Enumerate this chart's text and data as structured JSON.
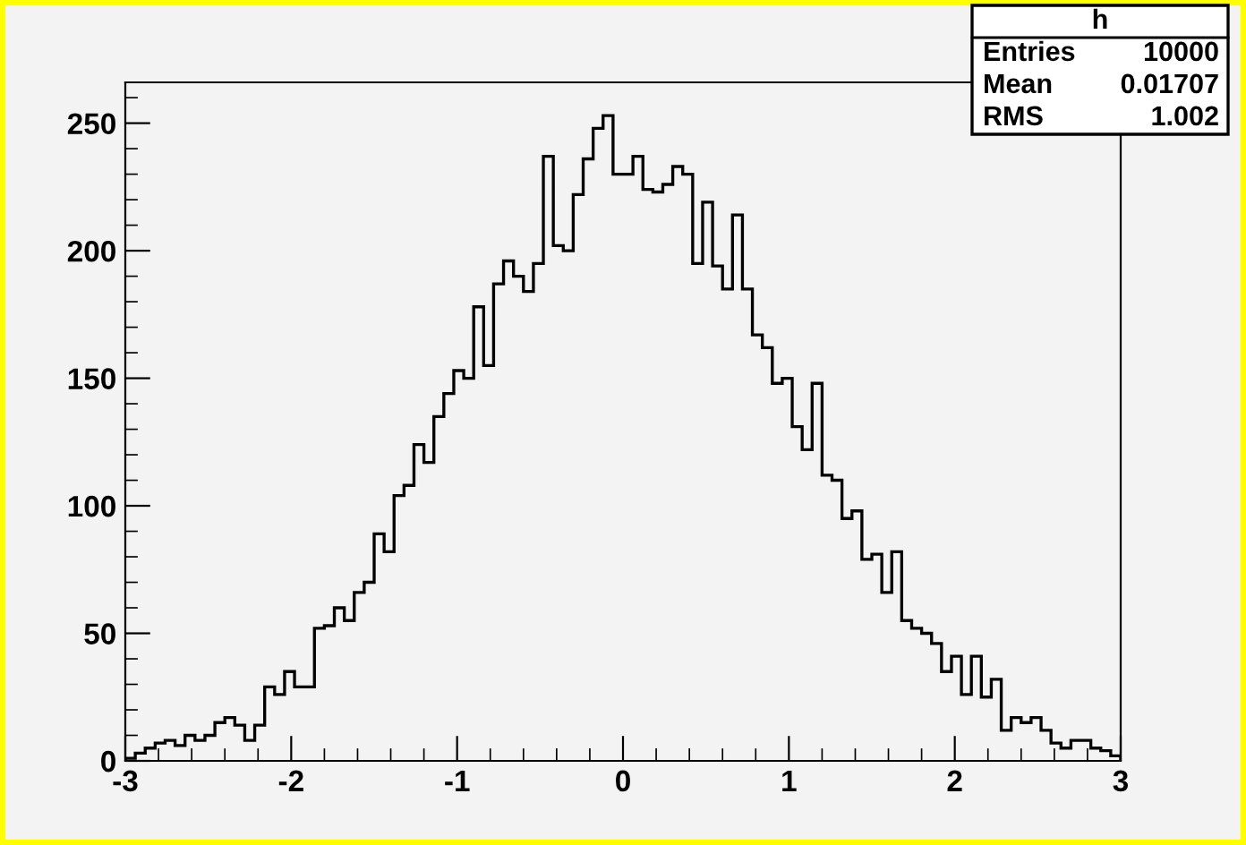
{
  "chart_data": {
    "type": "histogram",
    "bins": [
      -3,
      -2.94,
      -2.88,
      -2.82,
      -2.76,
      -2.7,
      -2.64,
      -2.58,
      -2.52,
      -2.46,
      -2.4,
      -2.34,
      -2.28,
      -2.22,
      -2.16,
      -2.1,
      -2.04,
      -1.98,
      -1.92,
      -1.86,
      -1.8,
      -1.74,
      -1.68,
      -1.62,
      -1.56,
      -1.5,
      -1.44,
      -1.38,
      -1.32,
      -1.26,
      -1.2,
      -1.14,
      -1.08,
      -1.02,
      -0.96,
      -0.9,
      -0.84,
      -0.78,
      -0.72,
      -0.66,
      -0.6,
      -0.54,
      -0.48,
      -0.42,
      -0.36,
      -0.3,
      -0.24,
      -0.18,
      -0.12,
      -0.06,
      0,
      0.06,
      0.12,
      0.18,
      0.24,
      0.3,
      0.36,
      0.42,
      0.48,
      0.54,
      0.6,
      0.66,
      0.72,
      0.78,
      0.84,
      0.9,
      0.96,
      1.02,
      1.08,
      1.14,
      1.2,
      1.26,
      1.32,
      1.38,
      1.44,
      1.5,
      1.56,
      1.62,
      1.68,
      1.74,
      1.8,
      1.86,
      1.92,
      1.98,
      2.04,
      2.1,
      2.16,
      2.22,
      2.28,
      2.34,
      2.4,
      2.46,
      2.52,
      2.58,
      2.64,
      2.7,
      2.76,
      2.82,
      2.88,
      2.94,
      3
    ],
    "values": [
      1,
      3,
      5,
      7,
      8,
      6,
      10,
      8,
      10,
      15,
      17,
      14,
      8,
      14,
      29,
      26,
      35,
      29,
      29,
      52,
      53,
      60,
      55,
      66,
      70,
      89,
      82,
      104,
      108,
      124,
      117,
      135,
      144,
      153,
      150,
      178,
      155,
      187,
      196,
      190,
      184,
      195,
      237,
      202,
      200,
      222,
      236,
      248,
      253,
      230,
      230,
      237,
      224,
      223,
      226,
      233,
      230,
      195,
      219,
      194,
      185,
      214,
      185,
      167,
      162,
      148,
      150,
      131,
      122,
      148,
      112,
      110,
      95,
      98,
      79,
      81,
      66,
      82,
      55,
      52,
      50,
      46,
      35,
      41,
      26,
      41,
      25,
      32,
      12,
      17,
      15,
      17,
      12,
      7,
      5,
      8,
      8,
      5,
      4,
      2
    ],
    "color": "#000000",
    "xlim": [
      -3,
      3
    ],
    "xticks": [
      -3,
      -2,
      -1,
      0,
      1,
      2,
      3
    ],
    "ylim": [
      0,
      266
    ],
    "yticks": [
      0,
      50,
      100,
      150,
      200,
      250
    ],
    "grid": false,
    "annotations": [
      "h",
      "Entries 10000",
      "Mean 0.01707",
      "RMS 1.002"
    ]
  }
}
